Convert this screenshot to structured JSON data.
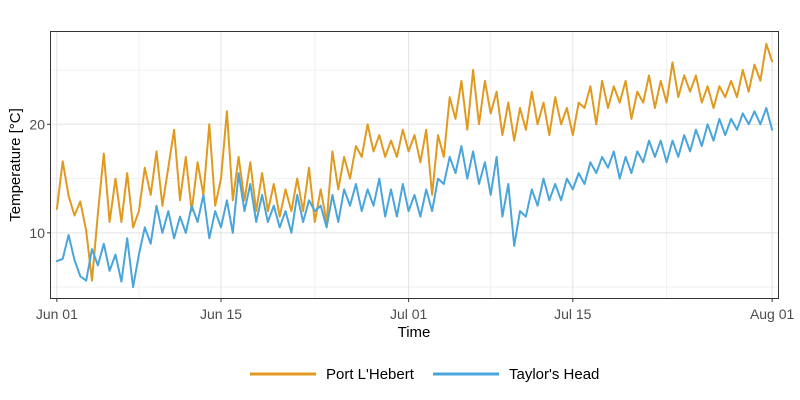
{
  "chart_data": {
    "type": "line",
    "xlabel": "Time",
    "ylabel": "Temperature [°C]",
    "x_unit": "date",
    "xlim": [
      "2021-05-31T12:00",
      "2021-08-01T12:00"
    ],
    "ylim": [
      4,
      28.5
    ],
    "x_ticks": [
      {
        "value": "2021-06-01",
        "label": "Jun 01"
      },
      {
        "value": "2021-06-15",
        "label": "Jun 15"
      },
      {
        "value": "2021-07-01",
        "label": "Jul 01"
      },
      {
        "value": "2021-07-15",
        "label": "Jul 15"
      },
      {
        "value": "2021-08-01",
        "label": "Aug 01"
      }
    ],
    "x_minor_ticks": [
      "2021-06-08",
      "2021-06-23",
      "2021-07-08",
      "2021-07-23"
    ],
    "y_ticks": [
      10,
      20
    ],
    "y_minor_ticks": [
      5,
      15,
      25
    ],
    "grid": true,
    "legend_position": "bottom",
    "series": [
      {
        "name": "Port L'Hebert",
        "color": "#E09A1F",
        "x": [
          "2021-06-01",
          "2021-06-01T12:00",
          "2021-06-02",
          "2021-06-02T12:00",
          "2021-06-03",
          "2021-06-03T12:00",
          "2021-06-04",
          "2021-06-04T12:00",
          "2021-06-05",
          "2021-06-05T12:00",
          "2021-06-06",
          "2021-06-06T12:00",
          "2021-06-07",
          "2021-06-07T12:00",
          "2021-06-08",
          "2021-06-08T12:00",
          "2021-06-09",
          "2021-06-09T12:00",
          "2021-06-10",
          "2021-06-10T12:00",
          "2021-06-11",
          "2021-06-11T12:00",
          "2021-06-12",
          "2021-06-12T12:00",
          "2021-06-13",
          "2021-06-13T12:00",
          "2021-06-14",
          "2021-06-14T12:00",
          "2021-06-15",
          "2021-06-15T12:00",
          "2021-06-16",
          "2021-06-16T12:00",
          "2021-06-17",
          "2021-06-17T12:00",
          "2021-06-18",
          "2021-06-18T12:00",
          "2021-06-19",
          "2021-06-19T12:00",
          "2021-06-20",
          "2021-06-20T12:00",
          "2021-06-21",
          "2021-06-21T12:00",
          "2021-06-22",
          "2021-06-22T12:00",
          "2021-06-23",
          "2021-06-23T12:00",
          "2021-06-24",
          "2021-06-24T12:00",
          "2021-06-25",
          "2021-06-25T12:00",
          "2021-06-26",
          "2021-06-26T12:00",
          "2021-06-27",
          "2021-06-27T12:00",
          "2021-06-28",
          "2021-06-28T12:00",
          "2021-06-29",
          "2021-06-29T12:00",
          "2021-06-30",
          "2021-06-30T12:00",
          "2021-07-01",
          "2021-07-01T12:00",
          "2021-07-02",
          "2021-07-02T12:00",
          "2021-07-03",
          "2021-07-03T12:00",
          "2021-07-04",
          "2021-07-04T12:00",
          "2021-07-05",
          "2021-07-05T12:00",
          "2021-07-06",
          "2021-07-06T12:00",
          "2021-07-07",
          "2021-07-07T12:00",
          "2021-07-08",
          "2021-07-08T12:00",
          "2021-07-09",
          "2021-07-09T12:00",
          "2021-07-10",
          "2021-07-10T12:00",
          "2021-07-11",
          "2021-07-11T12:00",
          "2021-07-12",
          "2021-07-12T12:00",
          "2021-07-13",
          "2021-07-13T12:00",
          "2021-07-14",
          "2021-07-14T12:00",
          "2021-07-15",
          "2021-07-15T12:00",
          "2021-07-16",
          "2021-07-16T12:00",
          "2021-07-17",
          "2021-07-17T12:00",
          "2021-07-18",
          "2021-07-18T12:00",
          "2021-07-19",
          "2021-07-19T12:00",
          "2021-07-20",
          "2021-07-20T12:00",
          "2021-07-21",
          "2021-07-21T12:00",
          "2021-07-22",
          "2021-07-22T12:00",
          "2021-07-23",
          "2021-07-23T12:00",
          "2021-07-24",
          "2021-07-24T12:00",
          "2021-07-25",
          "2021-07-25T12:00",
          "2021-07-26",
          "2021-07-26T12:00",
          "2021-07-27",
          "2021-07-27T12:00",
          "2021-07-28",
          "2021-07-28T12:00",
          "2021-07-29",
          "2021-07-29T12:00",
          "2021-07-30",
          "2021-07-30T12:00",
          "2021-07-31",
          "2021-07-31T12:00",
          "2021-08-01"
        ],
        "values": [
          12.2,
          16.6,
          13.4,
          11.6,
          12.9,
          10.2,
          5.6,
          11.8,
          17.3,
          11.0,
          15.0,
          11.0,
          15.5,
          10.5,
          12.0,
          16.0,
          13.5,
          17.5,
          12.5,
          16.0,
          19.5,
          13.0,
          17.0,
          12.0,
          16.5,
          13.5,
          20.0,
          12.5,
          15.0,
          21.2,
          13.0,
          17.0,
          13.0,
          16.5,
          12.0,
          15.5,
          12.0,
          14.5,
          11.5,
          14.0,
          12.0,
          15.0,
          12.0,
          16.0,
          11.0,
          14.0,
          11.0,
          17.5,
          14.0,
          17.0,
          15.0,
          18.0,
          17.0,
          20.0,
          17.5,
          19.0,
          17.0,
          18.5,
          17.0,
          19.5,
          17.5,
          19.0,
          16.5,
          19.5,
          13.5,
          19.0,
          17.0,
          22.5,
          20.5,
          24.0,
          19.5,
          25.0,
          20.0,
          24.0,
          21.0,
          23.0,
          19.0,
          22.0,
          18.5,
          21.5,
          19.5,
          23.0,
          20.0,
          22.0,
          19.0,
          22.5,
          20.0,
          21.5,
          19.0,
          22.0,
          21.5,
          23.5,
          20.0,
          24.0,
          21.5,
          23.5,
          22.0,
          24.0,
          20.5,
          23.0,
          22.0,
          24.5,
          21.5,
          24.0,
          22.0,
          25.7,
          22.5,
          24.5,
          23.0,
          24.5,
          22.0,
          23.5,
          21.5,
          23.5,
          22.5,
          24.0,
          22.5,
          25.0,
          23.0,
          25.5,
          24.0,
          27.4,
          25.8
        ]
      },
      {
        "name": "Taylor's Head",
        "color": "#4AA5DB",
        "x": [
          "2021-06-01",
          "2021-06-01T12:00",
          "2021-06-02",
          "2021-06-02T12:00",
          "2021-06-03",
          "2021-06-03T12:00",
          "2021-06-04",
          "2021-06-04T12:00",
          "2021-06-05",
          "2021-06-05T12:00",
          "2021-06-06",
          "2021-06-06T12:00",
          "2021-06-07",
          "2021-06-07T12:00",
          "2021-06-08",
          "2021-06-08T12:00",
          "2021-06-09",
          "2021-06-09T12:00",
          "2021-06-10",
          "2021-06-10T12:00",
          "2021-06-11",
          "2021-06-11T12:00",
          "2021-06-12",
          "2021-06-12T12:00",
          "2021-06-13",
          "2021-06-13T12:00",
          "2021-06-14",
          "2021-06-14T12:00",
          "2021-06-15",
          "2021-06-15T12:00",
          "2021-06-16",
          "2021-06-16T12:00",
          "2021-06-17",
          "2021-06-17T12:00",
          "2021-06-18",
          "2021-06-18T12:00",
          "2021-06-19",
          "2021-06-19T12:00",
          "2021-06-20",
          "2021-06-20T12:00",
          "2021-06-21",
          "2021-06-21T12:00",
          "2021-06-22",
          "2021-06-22T12:00",
          "2021-06-23",
          "2021-06-23T12:00",
          "2021-06-24",
          "2021-06-24T12:00",
          "2021-06-25",
          "2021-06-25T12:00",
          "2021-06-26",
          "2021-06-26T12:00",
          "2021-06-27",
          "2021-06-27T12:00",
          "2021-06-28",
          "2021-06-28T12:00",
          "2021-06-29",
          "2021-06-29T12:00",
          "2021-06-30",
          "2021-06-30T12:00",
          "2021-07-01",
          "2021-07-01T12:00",
          "2021-07-02",
          "2021-07-02T12:00",
          "2021-07-03",
          "2021-07-03T12:00",
          "2021-07-04",
          "2021-07-04T12:00",
          "2021-07-05",
          "2021-07-05T12:00",
          "2021-07-06",
          "2021-07-06T12:00",
          "2021-07-07",
          "2021-07-07T12:00",
          "2021-07-08",
          "2021-07-08T12:00",
          "2021-07-09",
          "2021-07-09T12:00",
          "2021-07-10",
          "2021-07-10T12:00",
          "2021-07-11",
          "2021-07-11T12:00",
          "2021-07-12",
          "2021-07-12T12:00",
          "2021-07-13",
          "2021-07-13T12:00",
          "2021-07-14",
          "2021-07-14T12:00",
          "2021-07-15",
          "2021-07-15T12:00",
          "2021-07-16",
          "2021-07-16T12:00",
          "2021-07-17",
          "2021-07-17T12:00",
          "2021-07-18",
          "2021-07-18T12:00",
          "2021-07-19",
          "2021-07-19T12:00",
          "2021-07-20",
          "2021-07-20T12:00",
          "2021-07-21",
          "2021-07-21T12:00",
          "2021-07-22",
          "2021-07-22T12:00",
          "2021-07-23",
          "2021-07-23T12:00",
          "2021-07-24",
          "2021-07-24T12:00",
          "2021-07-25",
          "2021-07-25T12:00",
          "2021-07-26",
          "2021-07-26T12:00",
          "2021-07-27",
          "2021-07-27T12:00",
          "2021-07-28",
          "2021-07-28T12:00",
          "2021-07-29",
          "2021-07-29T12:00",
          "2021-07-30",
          "2021-07-30T12:00",
          "2021-07-31",
          "2021-07-31T12:00",
          "2021-08-01"
        ],
        "values": [
          7.4,
          7.6,
          9.8,
          7.5,
          6.0,
          5.6,
          8.5,
          7.0,
          9.0,
          6.5,
          8.0,
          5.5,
          9.5,
          5.0,
          8.0,
          10.5,
          9.0,
          12.5,
          10.0,
          12.0,
          9.5,
          11.5,
          10.0,
          12.5,
          11.0,
          13.5,
          9.5,
          12.0,
          10.5,
          13.0,
          10.0,
          15.5,
          12.0,
          14.5,
          11.0,
          13.5,
          11.0,
          12.5,
          10.5,
          12.0,
          10.0,
          13.5,
          11.0,
          13.0,
          12.0,
          12.5,
          10.5,
          13.5,
          11.0,
          14.0,
          12.5,
          14.5,
          12.0,
          14.0,
          12.5,
          15.0,
          11.5,
          14.0,
          11.5,
          14.5,
          12.0,
          13.5,
          11.5,
          14.0,
          12.0,
          15.0,
          14.5,
          17.0,
          15.5,
          18.0,
          15.0,
          17.5,
          14.5,
          16.5,
          13.5,
          17.0,
          11.5,
          14.5,
          8.8,
          12.0,
          11.5,
          14.0,
          12.5,
          15.0,
          13.0,
          14.5,
          13.0,
          15.0,
          14.0,
          15.5,
          14.5,
          16.5,
          15.5,
          17.0,
          16.0,
          17.5,
          15.0,
          17.0,
          15.5,
          17.5,
          16.5,
          18.5,
          17.0,
          18.5,
          16.5,
          18.5,
          17.0,
          19.0,
          17.5,
          19.5,
          18.0,
          20.0,
          18.5,
          20.5,
          19.0,
          20.5,
          19.5,
          21.0,
          20.0,
          21.2,
          20.0,
          21.5,
          19.5
        ]
      }
    ]
  }
}
